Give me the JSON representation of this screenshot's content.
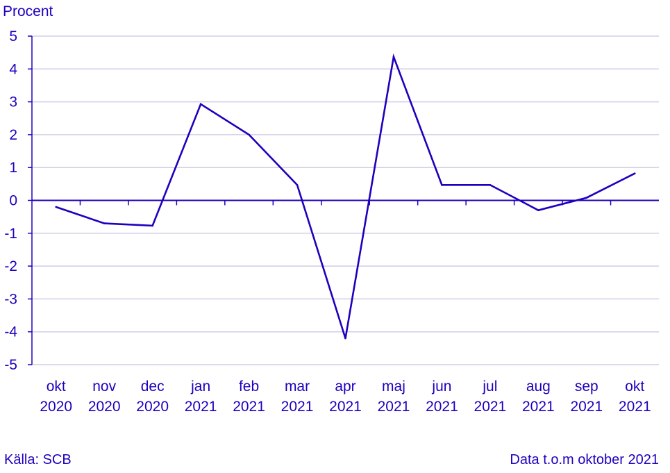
{
  "chart_data": {
    "type": "line",
    "ylabel": "Procent",
    "ylim": [
      -5,
      5
    ],
    "yticks": [
      5,
      4,
      3,
      2,
      1,
      0,
      -1,
      -2,
      -3,
      -4,
      -5
    ],
    "grid": true,
    "categories": [
      [
        "okt",
        "2020"
      ],
      [
        "nov",
        "2020"
      ],
      [
        "dec",
        "2020"
      ],
      [
        "jan",
        "2021"
      ],
      [
        "feb",
        "2021"
      ],
      [
        "mar",
        "2021"
      ],
      [
        "apr",
        "2021"
      ],
      [
        "maj",
        "2021"
      ],
      [
        "jun",
        "2021"
      ],
      [
        "jul",
        "2021"
      ],
      [
        "aug",
        "2021"
      ],
      [
        "sep",
        "2021"
      ],
      [
        "okt",
        "2021"
      ]
    ],
    "series": [
      {
        "values": [
          -0.2,
          -0.7,
          -0.77,
          2.93,
          2.0,
          0.47,
          -4.2,
          4.37,
          0.47,
          0.47,
          -0.3,
          0.08,
          0.82
        ]
      }
    ],
    "line_color": "#1e00be",
    "grid_color": "#cfcfe8"
  },
  "footer": {
    "source": "Källa: SCB",
    "note": "Data t.o.m oktober 2021"
  }
}
